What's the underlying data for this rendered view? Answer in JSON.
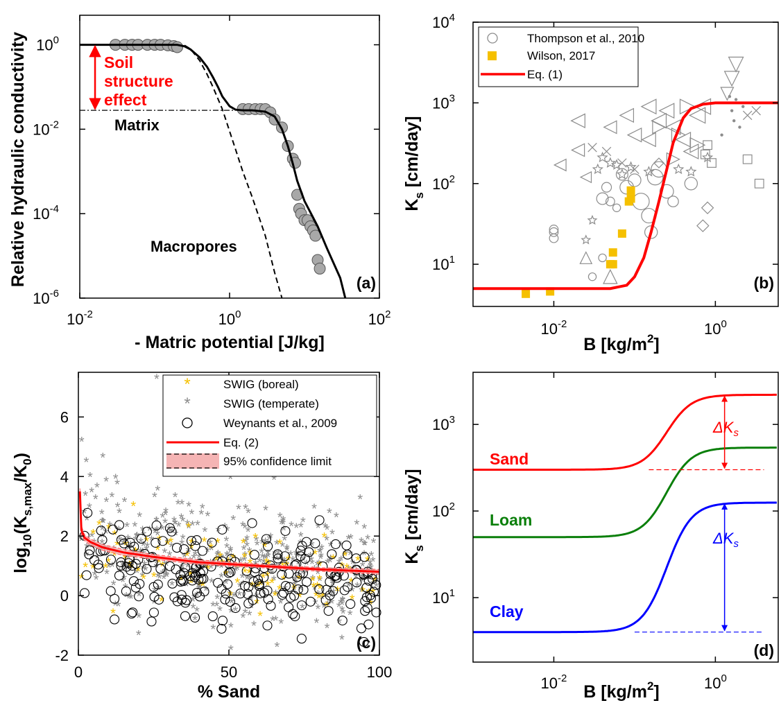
{
  "figure": {
    "colors": {
      "red": "#ff0000",
      "green": "#0a7f0a",
      "blue": "#0000ff",
      "gray": "#8c8c8c",
      "marker_fill": "#a8a8a8",
      "gold": "#f5c000"
    }
  },
  "chart_data": [
    {
      "id": "a",
      "type": "line",
      "panel_label": "(a)",
      "xlabel": "- Matric potential [J/kg]",
      "ylabel": "Relative hydraulic conductivity",
      "xscale": "log",
      "yscale": "log",
      "xlim": [
        0.01,
        100
      ],
      "ylim": [
        1e-06,
        5
      ],
      "x_ticks": [
        {
          "v": 0.01,
          "b": "10",
          "e": "-2"
        },
        {
          "v": 1,
          "b": "10",
          "e": "0"
        },
        {
          "v": 100,
          "b": "10",
          "e": "2"
        }
      ],
      "y_ticks": [
        {
          "v": 1e-06,
          "b": "10",
          "e": "-6"
        },
        {
          "v": 0.0001,
          "b": "10",
          "e": "-4"
        },
        {
          "v": 0.01,
          "b": "10",
          "e": "-2"
        },
        {
          "v": 1,
          "b": "10",
          "e": "0"
        }
      ],
      "annotations": {
        "soil_structure": [
          "Soil",
          "structure",
          "effect"
        ],
        "matrix": "Matrix",
        "macropores": "Macropores"
      },
      "curve_total": [
        [
          0.01,
          1
        ],
        [
          0.2,
          1
        ],
        [
          0.25,
          0.92
        ],
        [
          0.3,
          0.78
        ],
        [
          0.4,
          0.5
        ],
        [
          0.5,
          0.3
        ],
        [
          0.6,
          0.17
        ],
        [
          0.7,
          0.1
        ],
        [
          0.8,
          0.06
        ],
        [
          1,
          0.035
        ],
        [
          1.2,
          0.029
        ],
        [
          1.5,
          0.028
        ],
        [
          2,
          0.028
        ],
        [
          3,
          0.026
        ],
        [
          4,
          0.02
        ],
        [
          5,
          0.01
        ],
        [
          6,
          0.004
        ],
        [
          7,
          0.0015
        ],
        [
          8,
          0.0006
        ],
        [
          10,
          0.0002
        ],
        [
          15,
          5e-05
        ],
        [
          20,
          1.5e-05
        ],
        [
          30,
          3e-06
        ],
        [
          35,
          1e-06
        ]
      ],
      "curve_macropores": [
        [
          0.25,
          0.97
        ],
        [
          0.3,
          0.8
        ],
        [
          0.4,
          0.42
        ],
        [
          0.5,
          0.2
        ],
        [
          0.6,
          0.1
        ],
        [
          0.8,
          0.03
        ],
        [
          1,
          0.009
        ],
        [
          1.5,
          0.001
        ],
        [
          2,
          0.00025
        ],
        [
          3,
          3e-05
        ],
        [
          4,
          4e-06
        ],
        [
          5,
          1e-06
        ]
      ],
      "matrix_level": [
        [
          0.01,
          0.028
        ],
        [
          1.2,
          0.028
        ]
      ],
      "effect_arrow": {
        "x": 0.016,
        "y_top": 1,
        "y_bottom": 0.028
      },
      "points": [
        [
          0.03,
          1
        ],
        [
          0.04,
          1
        ],
        [
          0.05,
          1
        ],
        [
          0.06,
          1
        ],
        [
          0.08,
          1
        ],
        [
          0.1,
          1
        ],
        [
          0.12,
          1
        ],
        [
          0.15,
          0.97
        ],
        [
          0.18,
          0.93
        ],
        [
          0.2,
          0.88
        ],
        [
          1.5,
          0.03
        ],
        [
          1.8,
          0.03
        ],
        [
          2.2,
          0.03
        ],
        [
          2.6,
          0.03
        ],
        [
          3,
          0.03
        ],
        [
          3.5,
          0.025
        ],
        [
          4,
          0.017
        ],
        [
          5,
          0.011
        ],
        [
          6,
          0.004
        ],
        [
          7,
          0.002
        ],
        [
          7.5,
          0.0016
        ],
        [
          8,
          0.00028
        ],
        [
          8.5,
          0.00013
        ],
        [
          9,
          0.0001
        ],
        [
          10,
          7e-05
        ],
        [
          11,
          7e-05
        ],
        [
          12,
          5e-05
        ],
        [
          13,
          4e-05
        ],
        [
          14,
          3e-05
        ],
        [
          15,
          8e-06
        ],
        [
          16,
          5e-06
        ]
      ]
    },
    {
      "id": "b",
      "type": "scatter",
      "panel_label": "(b)",
      "xlabel": "B [kg/m",
      "xlabel_sup": "2",
      "xlabel_end": "]",
      "ylabel": "K",
      "ylabel_sub": "s",
      "ylabel_rest": " [cm/day]",
      "xscale": "log",
      "yscale": "log",
      "xlim": [
        0.001,
        6
      ],
      "ylim": [
        3,
        10000
      ],
      "x_ticks": [
        {
          "v": 0.01,
          "b": "10",
          "e": "-2"
        },
        {
          "v": 1,
          "b": "10",
          "e": "0"
        }
      ],
      "y_ticks": [
        {
          "v": 10,
          "b": "10",
          "e": "1"
        },
        {
          "v": 100,
          "b": "10",
          "e": "2"
        },
        {
          "v": 1000,
          "b": "10",
          "e": "3"
        },
        {
          "v": 10000,
          "b": "10",
          "e": "4"
        }
      ],
      "legend": [
        "Thompson et al., 2010",
        "Wilson, 2017",
        "Eq. (1)"
      ],
      "eq1_curve": [
        [
          0.001,
          5
        ],
        [
          0.05,
          5
        ],
        [
          0.08,
          5.5
        ],
        [
          0.1,
          7
        ],
        [
          0.13,
          12
        ],
        [
          0.16,
          25
        ],
        [
          0.2,
          60
        ],
        [
          0.25,
          150
        ],
        [
          0.3,
          320
        ],
        [
          0.4,
          650
        ],
        [
          0.5,
          850
        ],
        [
          0.7,
          960
        ],
        [
          1,
          1000
        ],
        [
          6,
          1000
        ]
      ],
      "wilson_points": [
        [
          0.0045,
          4.3
        ],
        [
          0.009,
          4.6
        ],
        [
          0.054,
          14
        ],
        [
          0.054,
          10
        ],
        [
          0.05,
          10
        ],
        [
          0.07,
          24
        ],
        [
          0.09,
          82
        ],
        [
          0.085,
          60
        ],
        [
          0.09,
          65
        ]
      ],
      "thompson_points": [
        [
          0.01,
          21,
          "circle",
          0.9
        ],
        [
          0.01,
          25,
          "circle",
          0.9
        ],
        [
          0.01,
          27,
          "circle",
          0.9
        ],
        [
          0.04,
          65,
          "circle",
          1.2
        ],
        [
          0.045,
          90,
          "circle",
          1
        ],
        [
          0.05,
          60,
          "circle",
          0.9
        ],
        [
          0.06,
          50,
          "circle",
          0.8
        ],
        [
          0.07,
          130,
          "circle",
          1.2
        ],
        [
          0.08,
          90,
          "circle",
          1.4
        ],
        [
          0.1,
          110,
          "circle",
          1.3
        ],
        [
          0.12,
          60,
          "circle",
          1.7
        ],
        [
          0.15,
          40,
          "circle",
          1.5
        ],
        [
          0.16,
          25,
          "circle",
          1.3
        ],
        [
          0.18,
          120,
          "circle",
          1.6
        ],
        [
          0.2,
          150,
          "circle",
          1.6
        ],
        [
          0.25,
          80,
          "circle",
          1.4
        ],
        [
          0.3,
          60,
          "circle",
          1.1
        ],
        [
          0.5,
          100,
          "circle",
          1.3
        ],
        [
          0.04,
          12,
          "circle",
          0.8
        ],
        [
          0.03,
          7,
          "circle",
          0.8
        ],
        [
          0.012,
          170,
          "ltri",
          1.2
        ],
        [
          0.02,
          260,
          "ltri",
          1.3
        ],
        [
          0.02,
          600,
          "ltri",
          1.4
        ],
        [
          0.025,
          120,
          "ltri",
          1.1
        ],
        [
          0.05,
          500,
          "ltri",
          1.3
        ],
        [
          0.08,
          700,
          "ltri",
          1.4
        ],
        [
          0.1,
          400,
          "ltri",
          1.4
        ],
        [
          0.15,
          900,
          "ltri",
          1.5
        ],
        [
          0.2,
          600,
          "ltri",
          1.5
        ],
        [
          0.25,
          800,
          "ltri",
          1.5
        ],
        [
          0.3,
          500,
          "ltri",
          1.5
        ],
        [
          0.4,
          350,
          "ltri",
          1.5
        ],
        [
          0.5,
          250,
          "ltri",
          1.5
        ],
        [
          0.6,
          700,
          "ltri",
          1.6
        ],
        [
          0.7,
          900,
          "ltri",
          1.6
        ],
        [
          0.15,
          350,
          "ltri",
          1.4
        ],
        [
          0.2,
          500,
          "rtri",
          1.3
        ],
        [
          0.35,
          400,
          "rtri",
          1.4
        ],
        [
          0.45,
          900,
          "rtri",
          1.5
        ],
        [
          0.6,
          300,
          "rtri",
          1.5
        ],
        [
          0.3,
          200,
          "rtri",
          1.3
        ],
        [
          1.8,
          3000,
          "dtri",
          1.5
        ],
        [
          1.6,
          2000,
          "dtri",
          1.5
        ],
        [
          1.4,
          1300,
          "dtri",
          1.3
        ],
        [
          0.025,
          20,
          "star",
          0.9
        ],
        [
          0.03,
          35,
          "star",
          0.9
        ],
        [
          0.035,
          150,
          "star",
          1
        ],
        [
          0.04,
          210,
          "star",
          1
        ],
        [
          0.05,
          180,
          "star",
          1
        ],
        [
          0.06,
          170,
          "star",
          1
        ],
        [
          0.07,
          130,
          "star",
          1
        ],
        [
          0.09,
          160,
          "star",
          1
        ],
        [
          0.15,
          140,
          "star",
          1
        ],
        [
          0.35,
          150,
          "star",
          1
        ],
        [
          0.5,
          140,
          "star",
          1
        ],
        [
          0.8,
          210,
          "star",
          1
        ],
        [
          0.03,
          280,
          "cross",
          0.9
        ],
        [
          0.045,
          250,
          "cross",
          0.9
        ],
        [
          0.07,
          180,
          "cross",
          0.9
        ],
        [
          0.1,
          150,
          "cross",
          0.9
        ],
        [
          2.5,
          700,
          "cross",
          0.9
        ],
        [
          3.2,
          800,
          "cross",
          0.9
        ],
        [
          0.8,
          300,
          "square",
          0.9
        ],
        [
          0.9,
          180,
          "square",
          0.9
        ],
        [
          0.75,
          230,
          "square",
          0.9
        ],
        [
          2.5,
          200,
          "square",
          0.9
        ],
        [
          3.5,
          100,
          "square",
          0.9
        ],
        [
          0.2,
          180,
          "diamond",
          1
        ],
        [
          0.8,
          50,
          "diamond",
          1.2
        ],
        [
          0.7,
          30,
          "diamond",
          1.2
        ],
        [
          0.05,
          7,
          "utri",
          1.4
        ],
        [
          0.025,
          12,
          "utri",
          1.2
        ],
        [
          1.5,
          1200,
          "dot",
          0.6
        ],
        [
          1.6,
          800,
          "dot",
          0.6
        ],
        [
          1.7,
          600,
          "dot",
          0.6
        ],
        [
          1.8,
          1100,
          "dot",
          0.6
        ],
        [
          2,
          500,
          "dot",
          0.6
        ],
        [
          2.2,
          900,
          "dot",
          0.6
        ],
        [
          1.2,
          400,
          "dot",
          0.6
        ]
      ]
    },
    {
      "id": "c",
      "type": "scatter",
      "panel_label": "(c)",
      "xlabel": "% Sand",
      "ylabel": "log",
      "ylabel_sub": "10",
      "ylabel_mid": "(K",
      "ylabel_sub2": "s,max",
      "ylabel_end": "/K",
      "ylabel_sub3": "0",
      "ylabel_close": ")",
      "xlim": [
        0,
        100
      ],
      "ylim": [
        -2,
        7.5
      ],
      "x_ticks": [
        0,
        50,
        100
      ],
      "y_ticks": [
        -2,
        0,
        2,
        4,
        6
      ],
      "legend": [
        "SWIG (boreal)",
        "SWIG (temperate)",
        "Weynants et al., 2009",
        "Eq. (2)",
        "95% confidence limit"
      ],
      "eq2_curve": [
        [
          0.5,
          3.5
        ],
        [
          1,
          2.2
        ],
        [
          2,
          1.95
        ],
        [
          4,
          1.8
        ],
        [
          8,
          1.62
        ],
        [
          15,
          1.45
        ],
        [
          25,
          1.3
        ],
        [
          40,
          1.12
        ],
        [
          60,
          1
        ],
        [
          80,
          0.88
        ],
        [
          100,
          0.8
        ]
      ],
      "eq2_upper": [
        [
          0.5,
          3.6
        ],
        [
          1,
          2.35
        ],
        [
          2,
          2.05
        ],
        [
          4,
          1.9
        ],
        [
          8,
          1.72
        ],
        [
          15,
          1.55
        ],
        [
          25,
          1.38
        ],
        [
          40,
          1.2
        ],
        [
          60,
          1.06
        ],
        [
          80,
          0.94
        ],
        [
          100,
          0.88
        ]
      ],
      "eq2_lower": [
        [
          0.5,
          3.4
        ],
        [
          1,
          2.05
        ],
        [
          2,
          1.85
        ],
        [
          4,
          1.7
        ],
        [
          8,
          1.52
        ],
        [
          15,
          1.35
        ],
        [
          25,
          1.22
        ],
        [
          40,
          1.05
        ],
        [
          60,
          0.94
        ],
        [
          80,
          0.82
        ],
        [
          100,
          0.72
        ]
      ],
      "scatter_clouds": [
        {
          "series": "temperate",
          "count": 430,
          "seed": 11,
          "xmin": 1,
          "xmax": 99,
          "mean": 1.55,
          "sd": 1.05
        },
        {
          "series": "boreal",
          "count": 110,
          "seed": 23,
          "xmin": 1,
          "xmax": 99,
          "mean": 1.05,
          "sd": 0.65
        },
        {
          "series": "weynants",
          "count": 230,
          "seed": 37,
          "xmin": 2,
          "xmax": 99,
          "mean": 0.85,
          "sd": 0.8
        }
      ],
      "notable_points": [
        [
          26,
          7.3,
          "temperate"
        ],
        [
          30,
          7.2,
          "temperate"
        ],
        [
          20,
          -1.3,
          "temperate"
        ],
        [
          12,
          -0.8,
          "weynants"
        ],
        [
          94,
          -1.1,
          "weynants"
        ],
        [
          66,
          -1.7,
          "temperate"
        ]
      ]
    },
    {
      "id": "d",
      "type": "line",
      "panel_label": "(d)",
      "xlabel": "B [kg/m",
      "xlabel_sup": "2",
      "xlabel_end": "]",
      "ylabel": "K",
      "ylabel_sub": "s",
      "ylabel_rest": " [cm/day]",
      "xscale": "log",
      "yscale": "log",
      "xlim": [
        0.001,
        6
      ],
      "ylim": [
        1.8,
        4000
      ],
      "x_ticks": [
        {
          "v": 0.01,
          "b": "10",
          "e": "-2"
        },
        {
          "v": 1,
          "b": "10",
          "e": "0"
        }
      ],
      "y_ticks": [
        {
          "v": 10,
          "b": "10",
          "e": "1"
        },
        {
          "v": 100,
          "b": "10",
          "e": "2"
        },
        {
          "v": 1000,
          "b": "10",
          "e": "3"
        }
      ],
      "series": [
        {
          "name": "Sand",
          "color": "#ff0000",
          "low": 300,
          "high": 2200,
          "mid": 0.25
        },
        {
          "name": "Loam",
          "color": "#0a7f0a",
          "low": 50,
          "high": 540,
          "mid": 0.25
        },
        {
          "name": "Clay",
          "color": "#0000ff",
          "low": 4,
          "high": 125,
          "mid": 0.25
        }
      ],
      "delta_label": "ΔK",
      "delta_sub": "s",
      "delta_arrows": [
        {
          "color": "#ff0000",
          "x": 1.3,
          "top": 2200,
          "bottom": 300,
          "dash_from": 0.15,
          "dash_to": 4
        },
        {
          "color": "#0000ff",
          "x": 1.3,
          "top": 125,
          "bottom": 4,
          "dash_from": 0.1,
          "dash_to": 4
        }
      ]
    }
  ]
}
